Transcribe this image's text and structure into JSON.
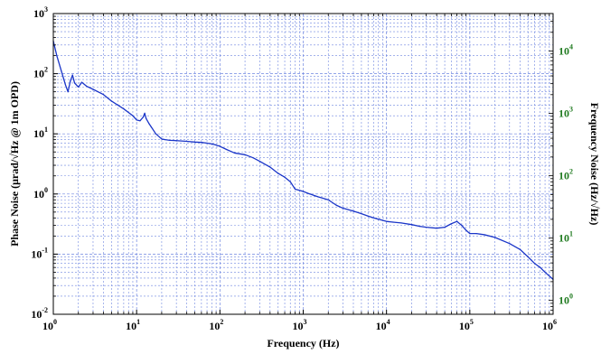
{
  "chart_data": {
    "type": "line",
    "xlabel": "Frequency (Hz)",
    "ylabel": "Phase Noise (μrad/√Hz @ 1m OPD)",
    "y2label": "Frequency Noise (Hz/√Hz)",
    "xscale": "log",
    "yscale": "log",
    "xlim": [
      1,
      1000000
    ],
    "ylim": [
      0.01,
      1000
    ],
    "y2lim": [
      0.6,
      40000
    ],
    "grid": true,
    "x_ticks": [
      {
        "base": "10",
        "exp": "0",
        "value": 1
      },
      {
        "base": "10",
        "exp": "1",
        "value": 10
      },
      {
        "base": "10",
        "exp": "2",
        "value": 100
      },
      {
        "base": "10",
        "exp": "3",
        "value": 1000
      },
      {
        "base": "10",
        "exp": "4",
        "value": 10000
      },
      {
        "base": "10",
        "exp": "5",
        "value": 100000
      },
      {
        "base": "10",
        "exp": "6",
        "value": 1000000
      }
    ],
    "y_ticks": [
      {
        "base": "10",
        "exp": "-2",
        "value": 0.01
      },
      {
        "base": "10",
        "exp": "-1",
        "value": 0.1
      },
      {
        "base": "10",
        "exp": "0",
        "value": 1
      },
      {
        "base": "10",
        "exp": "1",
        "value": 10
      },
      {
        "base": "10",
        "exp": "2",
        "value": 100
      },
      {
        "base": "10",
        "exp": "3",
        "value": 1000
      }
    ],
    "y2_ticks": [
      {
        "base": "10",
        "exp": "0",
        "value": 1
      },
      {
        "base": "10",
        "exp": "1",
        "value": 10
      },
      {
        "base": "10",
        "exp": "2",
        "value": 100
      },
      {
        "base": "10",
        "exp": "3",
        "value": 1000
      },
      {
        "base": "10",
        "exp": "4",
        "value": 10000
      }
    ],
    "series": [
      {
        "color": "#1a35c8",
        "x": [
          1,
          1.1,
          1.25,
          1.4,
          1.5,
          1.6,
          1.7,
          1.8,
          2,
          2.2,
          2.5,
          3,
          4,
          5,
          7,
          9,
          10,
          11,
          12,
          12.5,
          13,
          14,
          15,
          17,
          20,
          22,
          25,
          30,
          40,
          50,
          60,
          70,
          80,
          90,
          100,
          120,
          150,
          200,
          250,
          300,
          400,
          500,
          600,
          700,
          800,
          900,
          1000,
          1200,
          1500,
          2000,
          2500,
          3000,
          4000,
          5000,
          6000,
          7000,
          8000,
          10000,
          12000,
          15000,
          20000,
          25000,
          30000,
          40000,
          50000,
          60000,
          70000,
          80000,
          90000,
          100000,
          120000,
          150000,
          200000,
          300000,
          400000,
          500000,
          600000,
          700000,
          800000,
          1000000
        ],
        "y": [
          350,
          200,
          110,
          65,
          50,
          75,
          95,
          70,
          60,
          72,
          62,
          55,
          45,
          35,
          26,
          20,
          17,
          16.5,
          19,
          22,
          18,
          15,
          13,
          10,
          8.2,
          8.0,
          7.8,
          7.7,
          7.5,
          7.3,
          7.2,
          7.0,
          6.8,
          6.5,
          6.2,
          5.5,
          4.8,
          4.5,
          4.0,
          3.5,
          2.8,
          2.2,
          1.9,
          1.6,
          1.2,
          1.15,
          1.1,
          1.0,
          0.9,
          0.8,
          0.65,
          0.58,
          0.52,
          0.47,
          0.43,
          0.4,
          0.38,
          0.35,
          0.34,
          0.33,
          0.31,
          0.29,
          0.28,
          0.27,
          0.28,
          0.32,
          0.35,
          0.3,
          0.25,
          0.22,
          0.22,
          0.21,
          0.19,
          0.15,
          0.12,
          0.09,
          0.07,
          0.06,
          0.05,
          0.038
        ]
      }
    ]
  }
}
